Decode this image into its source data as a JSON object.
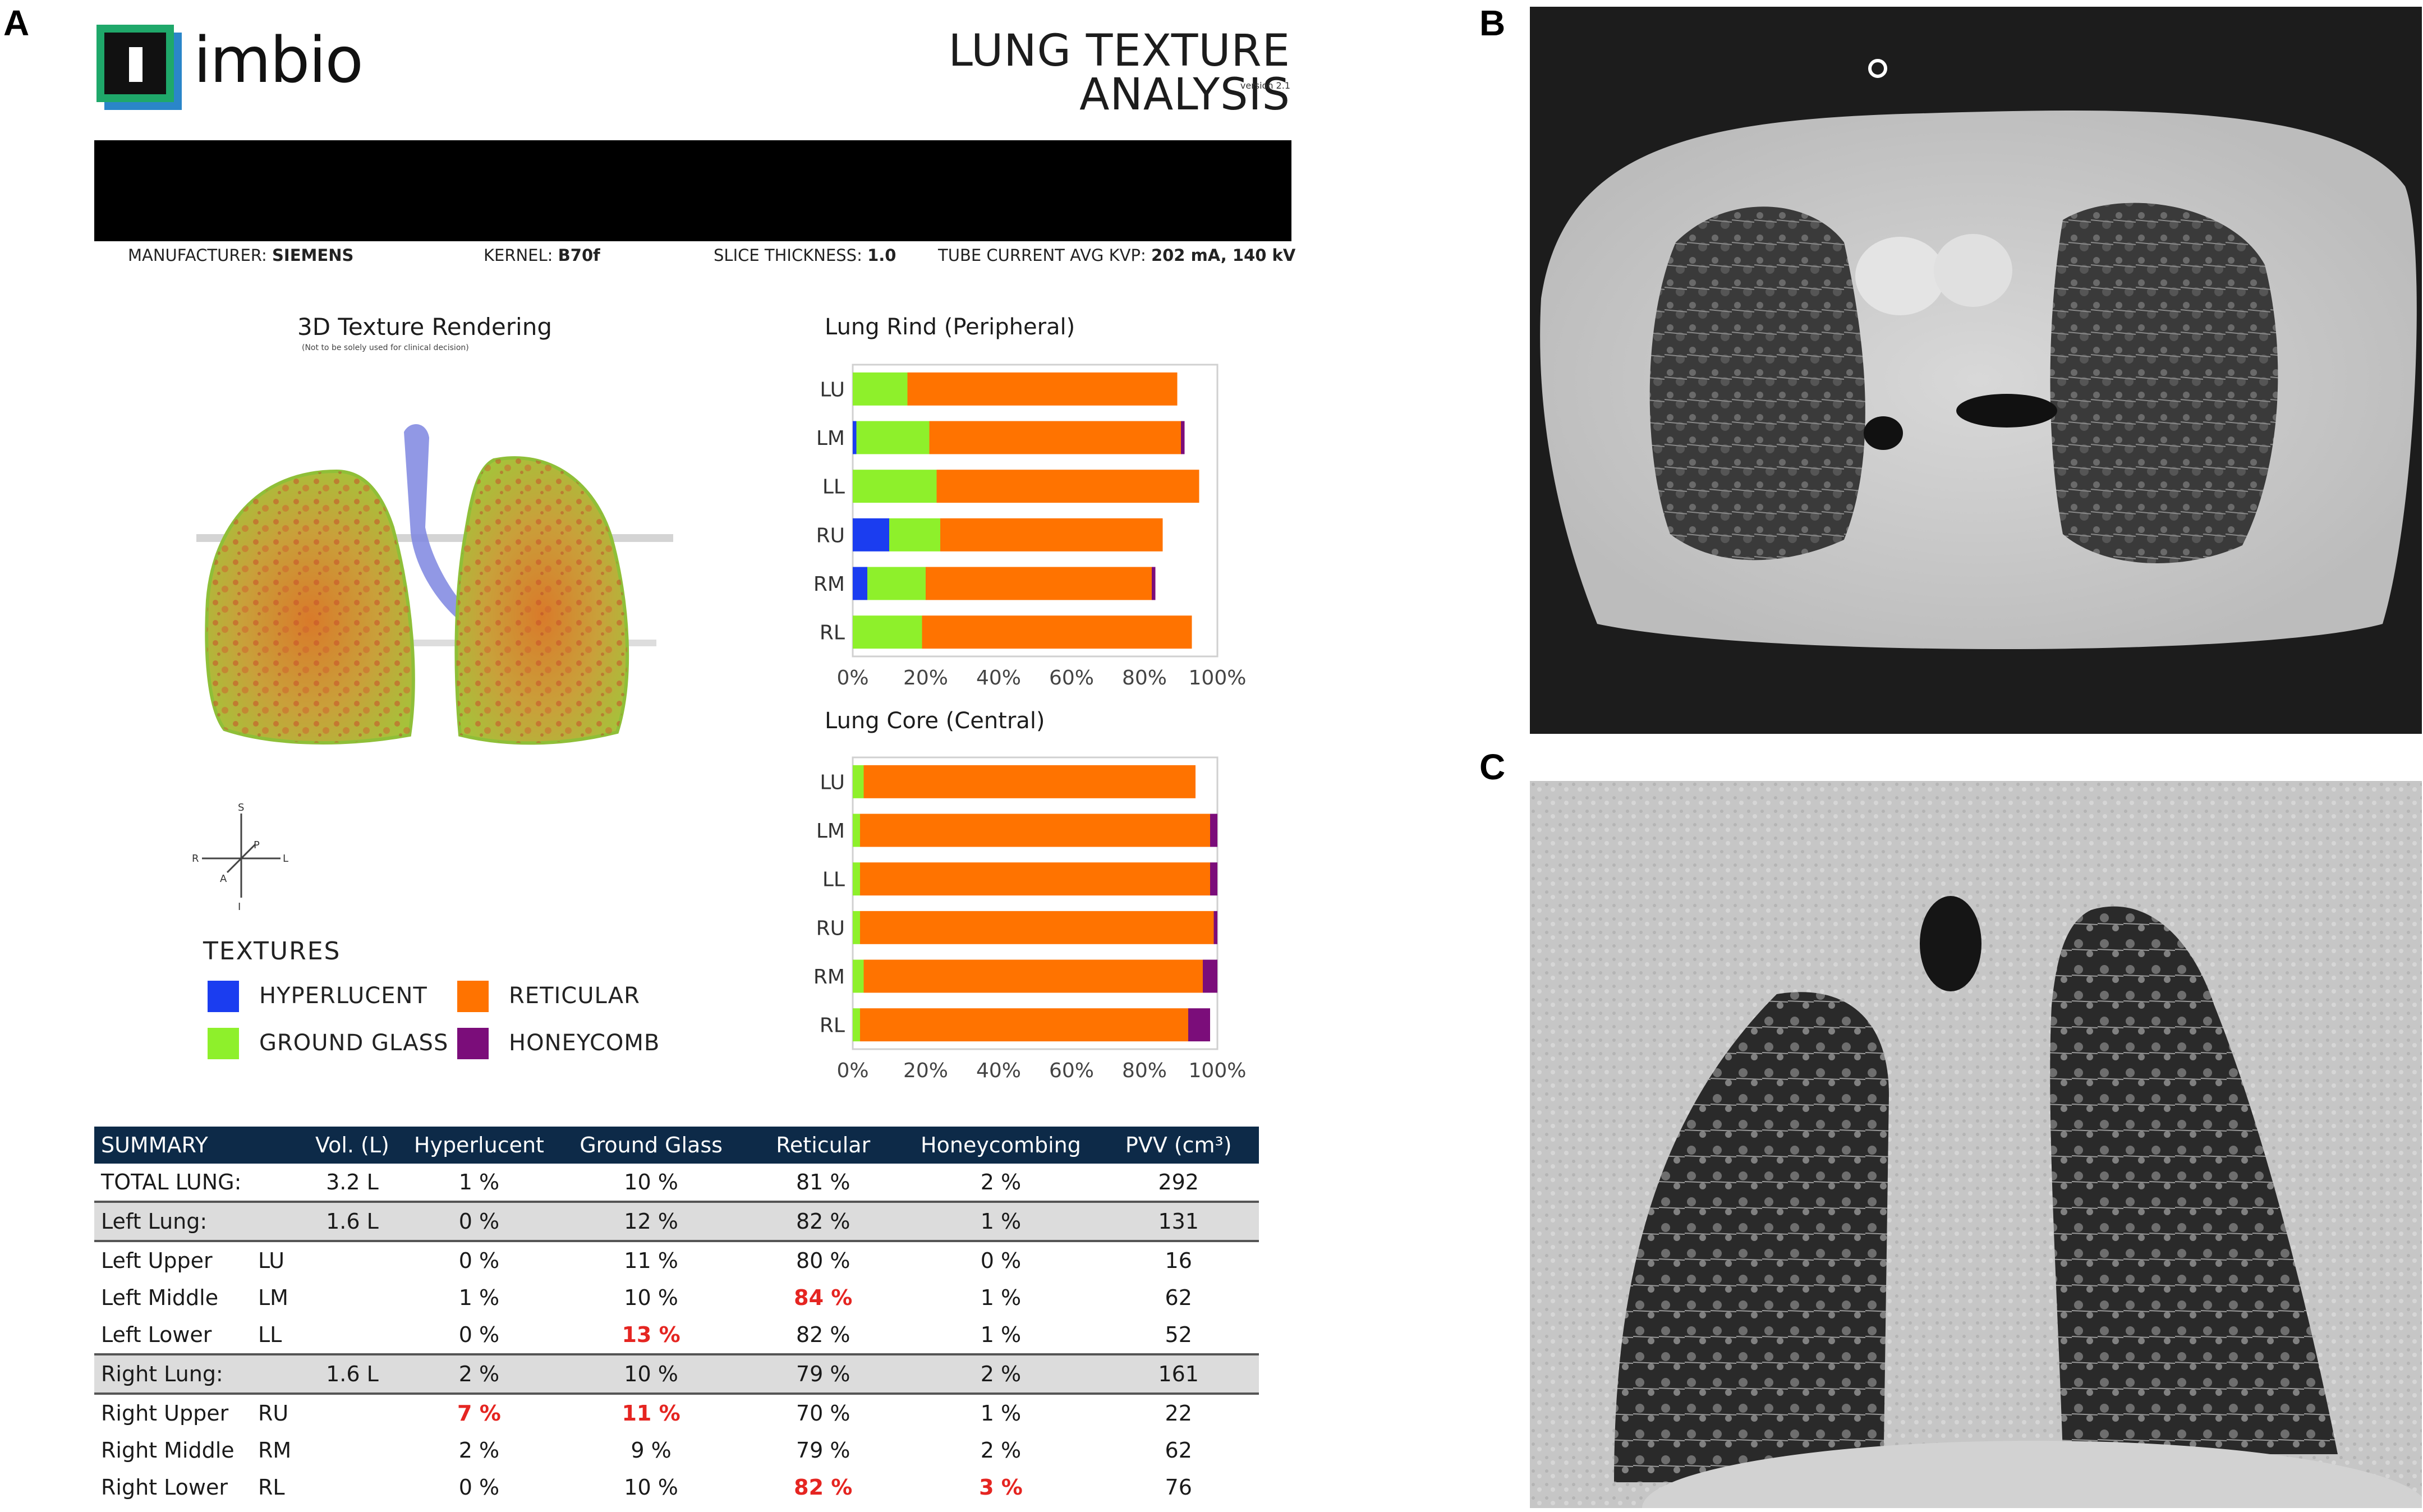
{
  "panels": {
    "a": "A",
    "b": "B",
    "c": "C"
  },
  "header": {
    "logo_word": "imbio",
    "title": "LUNG TEXTURE ANALYSIS",
    "version": "version 2.1"
  },
  "scan_info": {
    "manufacturer_label": "MANUFACTURER:",
    "manufacturer_value": "SIEMENS",
    "kernel_label": "KERNEL:",
    "kernel_value": "B70f",
    "slice_label": "SLICE THICKNESS:",
    "slice_value": "1.0",
    "tube_label": "TUBE CURRENT AVG KVP:",
    "tube_value": "202 mA, 140 kV"
  },
  "rendering": {
    "title": "3D Texture Rendering",
    "note": "(Not to be solely used for clinical decision)",
    "orientation": {
      "s": "S",
      "i": "I",
      "r": "R",
      "l": "L",
      "a": "A",
      "p": "P"
    }
  },
  "textures": {
    "title": "TEXTURES",
    "items": [
      {
        "label": "HYPERLUCENT",
        "color": "#1b3df0"
      },
      {
        "label": "RETICULAR",
        "color": "#ff7300"
      },
      {
        "label": "GROUND GLASS",
        "color": "#8ef02b"
      },
      {
        "label": "HONEYCOMB",
        "color": "#7b0d7a"
      }
    ]
  },
  "chart_data": [
    {
      "type": "bar",
      "orientation": "horizontal-stacked",
      "title": "Lung Rind (Peripheral)",
      "categories": [
        "LU",
        "LM",
        "LL",
        "RU",
        "RM",
        "RL"
      ],
      "series": [
        {
          "name": "Hyperlucent",
          "color": "#1b3df0",
          "values": [
            0,
            1,
            0,
            10,
            4,
            0
          ]
        },
        {
          "name": "Ground Glass",
          "color": "#8ef02b",
          "values": [
            15,
            20,
            23,
            14,
            16,
            19
          ]
        },
        {
          "name": "Reticular",
          "color": "#ff7300",
          "values": [
            74,
            69,
            72,
            61,
            62,
            74
          ]
        },
        {
          "name": "Honeycomb",
          "color": "#7b0d7a",
          "values": [
            0,
            1,
            0,
            0,
            1,
            0
          ]
        }
      ],
      "x_ticks": [
        "0%",
        "20%",
        "40%",
        "60%",
        "80%",
        "100%"
      ],
      "xlim": [
        0,
        100
      ]
    },
    {
      "type": "bar",
      "orientation": "horizontal-stacked",
      "title": "Lung Core (Central)",
      "categories": [
        "LU",
        "LM",
        "LL",
        "RU",
        "RM",
        "RL"
      ],
      "series": [
        {
          "name": "Hyperlucent",
          "color": "#1b3df0",
          "values": [
            0,
            0,
            0,
            0,
            0,
            0
          ]
        },
        {
          "name": "Ground Glass",
          "color": "#8ef02b",
          "values": [
            3,
            2,
            2,
            2,
            3,
            2
          ]
        },
        {
          "name": "Reticular",
          "color": "#ff7300",
          "values": [
            91,
            96,
            96,
            97,
            93,
            90
          ]
        },
        {
          "name": "Honeycomb",
          "color": "#7b0d7a",
          "values": [
            0,
            2,
            2,
            1,
            4,
            6
          ]
        }
      ],
      "x_ticks": [
        "0%",
        "20%",
        "40%",
        "60%",
        "80%",
        "100%"
      ],
      "xlim": [
        0,
        100
      ]
    }
  ],
  "summary": {
    "headers": [
      "SUMMARY",
      "Vol. (L)",
      "Hyperlucent",
      "Ground Glass",
      "Reticular",
      "Honeycombing",
      "PVV (cm³)"
    ],
    "rows": [
      {
        "label": "TOTAL LUNG:",
        "code": "",
        "vol": "3.2 L",
        "hyper": "1 %",
        "gg": "10 %",
        "ret": "81 %",
        "honey": "2 %",
        "pvv": "292",
        "group": false,
        "hl": []
      },
      {
        "label": "Left Lung:",
        "code": "",
        "vol": "1.6 L",
        "hyper": "0 %",
        "gg": "12 %",
        "ret": "82 %",
        "honey": "1 %",
        "pvv": "131",
        "group": true,
        "hl": []
      },
      {
        "label": "Left Upper",
        "code": "LU",
        "vol": "",
        "hyper": "0 %",
        "gg": "11 %",
        "ret": "80 %",
        "honey": "0 %",
        "pvv": "16",
        "group": false,
        "hl": []
      },
      {
        "label": "Left Middle",
        "code": "LM",
        "vol": "",
        "hyper": "1 %",
        "gg": "10 %",
        "ret": "84 %",
        "honey": "1 %",
        "pvv": "62",
        "group": false,
        "hl": [
          "ret"
        ]
      },
      {
        "label": "Left Lower",
        "code": "LL",
        "vol": "",
        "hyper": "0 %",
        "gg": "13 %",
        "ret": "82 %",
        "honey": "1 %",
        "pvv": "52",
        "group": false,
        "hl": [
          "gg"
        ]
      },
      {
        "label": "Right Lung:",
        "code": "",
        "vol": "1.6 L",
        "hyper": "2 %",
        "gg": "10 %",
        "ret": "79 %",
        "honey": "2 %",
        "pvv": "161",
        "group": true,
        "hl": []
      },
      {
        "label": "Right Upper",
        "code": "RU",
        "vol": "",
        "hyper": "7 %",
        "gg": "11 %",
        "ret": "70 %",
        "honey": "1 %",
        "pvv": "22",
        "group": false,
        "hl": [
          "hyper",
          "gg"
        ]
      },
      {
        "label": "Right Middle",
        "code": "RM",
        "vol": "",
        "hyper": "2 %",
        "gg": "9 %",
        "ret": "79 %",
        "honey": "2 %",
        "pvv": "62",
        "group": false,
        "hl": []
      },
      {
        "label": "Right Lower",
        "code": "RL",
        "vol": "",
        "hyper": "0 %",
        "gg": "10 %",
        "ret": "82 %",
        "honey": "3 %",
        "pvv": "76",
        "group": false,
        "hl": [
          "ret",
          "honey"
        ]
      }
    ]
  },
  "colors": {
    "navy": "#0d2a48",
    "highlight": "#e52521",
    "logo_green": "#1fa86a",
    "logo_blue": "#2a86c9"
  }
}
